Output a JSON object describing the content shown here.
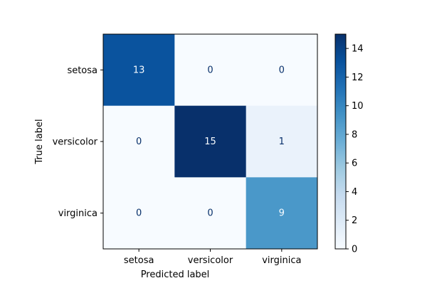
{
  "chart_data": {
    "type": "heatmap",
    "title": "",
    "xlabel": "Predicted label",
    "ylabel": "True label",
    "x_categories": [
      "setosa",
      "versicolor",
      "virginica"
    ],
    "y_categories": [
      "setosa",
      "versicolor",
      "virginica"
    ],
    "values": [
      [
        13,
        0,
        0
      ],
      [
        0,
        15,
        1
      ],
      [
        0,
        0,
        9
      ]
    ],
    "colormap": "Blues",
    "colorbar": {
      "range": [
        0,
        15
      ],
      "ticks": [
        0,
        2,
        4,
        6,
        8,
        10,
        12,
        14
      ]
    },
    "colors": {
      "low": "#f7fbff",
      "high": "#08306b",
      "text_dark": "#08306b",
      "text_light": "#f7fbff"
    }
  }
}
